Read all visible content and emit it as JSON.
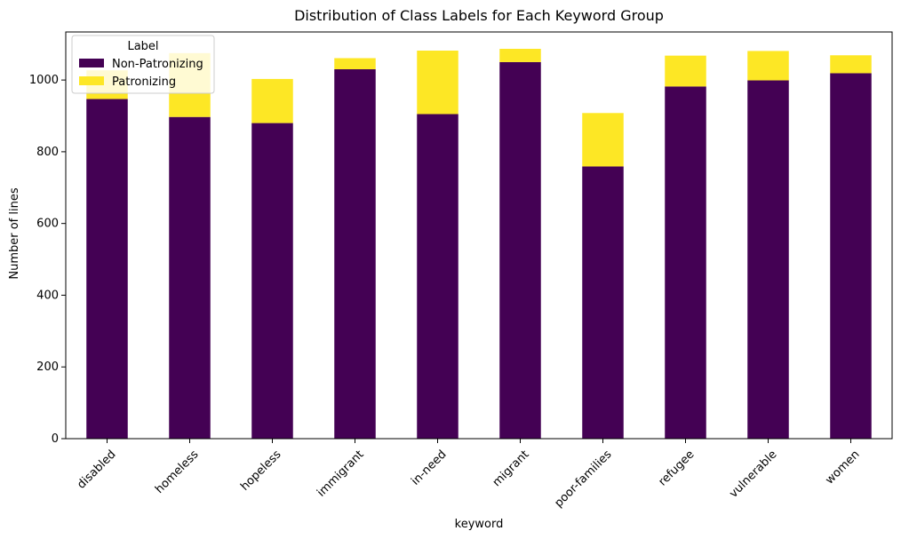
{
  "chart_data": {
    "type": "bar",
    "stacked": true,
    "title": "Distribution of Class Labels for Each Keyword Group",
    "xlabel": "keyword",
    "ylabel": "Number of lines",
    "ylim": [
      0,
      1134
    ],
    "yticks": [
      0,
      200,
      400,
      600,
      800,
      1000
    ],
    "categories": [
      "disabled",
      "homeless",
      "hopeless",
      "immigrant",
      "in-need",
      "migrant",
      "poor-families",
      "refugee",
      "vulnerable",
      "women"
    ],
    "series": [
      {
        "name": "Non-Patronizing",
        "color": "#440154",
        "values": [
          947,
          897,
          880,
          1030,
          905,
          1050,
          759,
          982,
          999,
          1019
        ]
      },
      {
        "name": "Patronizing",
        "color": "#fde725",
        "values": [
          80,
          178,
          123,
          31,
          177,
          37,
          149,
          86,
          82,
          50
        ]
      }
    ],
    "legend": {
      "title": "Label",
      "placement": "top-left"
    },
    "grid": false
  }
}
